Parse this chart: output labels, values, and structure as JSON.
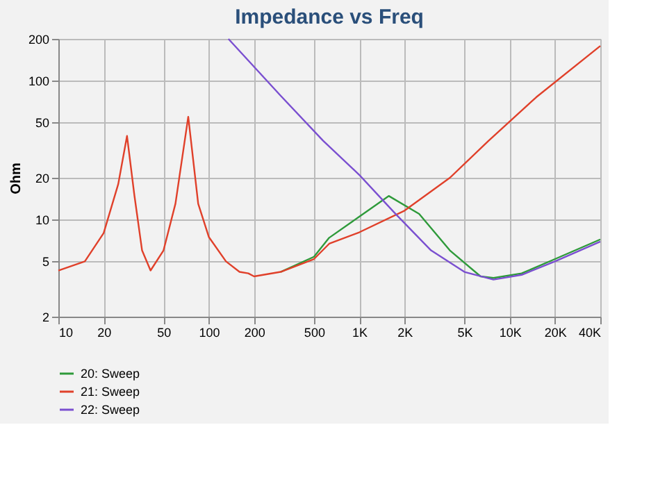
{
  "chart_data": {
    "type": "line",
    "title": "Impedance vs Freq",
    "ylabel": "Ohm",
    "log": "xy",
    "grid": true,
    "legend": "bottom left",
    "line_style": "solid",
    "marker": "none",
    "xlim": [
      10,
      40000
    ],
    "ylim": [
      2,
      200
    ],
    "xticks": [
      10,
      20,
      50,
      100,
      200,
      500,
      {
        "value": 1000,
        "label": "1K"
      },
      {
        "value": 2000,
        "label": "2K"
      },
      {
        "value": 5000,
        "label": "5K"
      },
      {
        "value": 10000,
        "label": "10K"
      },
      {
        "value": 20000,
        "label": "20K"
      },
      {
        "value": 40000,
        "label": "40K"
      }
    ],
    "yticks": [
      2,
      5,
      10,
      20,
      50,
      100,
      200
    ],
    "series": [
      {
        "name": "20: Sweep",
        "color": "#2e9a3a",
        "x": [
          300,
          500,
          631,
          1000,
          1570,
          2500,
          4000,
          6400,
          7800,
          12000,
          20000,
          40000
        ],
        "values": [
          4.2,
          5.4,
          7.4,
          10.5,
          14.8,
          11,
          6,
          3.9,
          3.8,
          4.1,
          5.2,
          7.2
        ]
      },
      {
        "name": "21: Sweep",
        "color": "#e0402a",
        "x": [
          10,
          15,
          20,
          25,
          28.6,
          32,
          36,
          41,
          50,
          60,
          73,
          85,
          100,
          130,
          160,
          183,
          200,
          300,
          500,
          631,
          1000,
          2000,
          4000,
          7200,
          15000,
          40000
        ],
        "values": [
          4.3,
          5,
          8,
          18,
          40,
          15,
          6,
          4.3,
          6,
          13,
          55,
          13,
          7.5,
          5,
          4.2,
          4.1,
          3.9,
          4.2,
          5.2,
          6.7,
          8.1,
          11.6,
          20,
          36.8,
          76,
          178
        ]
      },
      {
        "name": "22: Sweep",
        "color": "#7a4fd0",
        "x": [
          135,
          300,
          575,
          1000,
          1740,
          3000,
          5000,
          7800,
          12000,
          20000,
          40000
        ],
        "values": [
          200,
          78,
          37,
          21,
          11,
          6,
          4.2,
          3.7,
          4.0,
          5,
          6.95
        ]
      }
    ]
  }
}
